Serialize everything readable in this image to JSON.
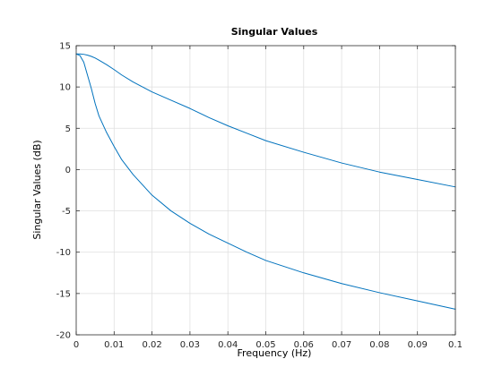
{
  "chart_data": {
    "type": "line",
    "title": "Singular Values",
    "xlabel": "Frequency (Hz)",
    "ylabel": "Singular Values (dB)",
    "xlim": [
      0,
      0.1
    ],
    "ylim": [
      -20,
      15
    ],
    "xticks": [
      0,
      0.01,
      0.02,
      0.03,
      0.04,
      0.05,
      0.06,
      0.07,
      0.08,
      0.09,
      0.1
    ],
    "xtick_labels": [
      "0",
      "0.01",
      "0.02",
      "0.03",
      "0.04",
      "0.05",
      "0.06",
      "0.07",
      "0.08",
      "0.09",
      "0.1"
    ],
    "yticks": [
      -20,
      -15,
      -10,
      -5,
      0,
      5,
      10,
      15
    ],
    "ytick_labels": [
      "-20",
      "-15",
      "-10",
      "-5",
      "0",
      "5",
      "10",
      "15"
    ],
    "grid": true,
    "line_color": "#0072BD",
    "series": [
      {
        "x": [
          0,
          0.001,
          0.002,
          0.003,
          0.004,
          0.005,
          0.006,
          0.008,
          0.01,
          0.012,
          0.015,
          0.02,
          0.025,
          0.03,
          0.035,
          0.04,
          0.045,
          0.05,
          0.06,
          0.07,
          0.08,
          0.09,
          0.1
        ],
        "y": [
          14,
          14,
          13.95,
          13.85,
          13.7,
          13.5,
          13.25,
          12.7,
          12.1,
          11.45,
          10.6,
          9.4,
          8.4,
          7.4,
          6.3,
          5.3,
          4.4,
          3.5,
          2.1,
          0.8,
          -0.3,
          -1.2,
          -2.1
        ]
      },
      {
        "x": [
          0,
          0.001,
          0.002,
          0.003,
          0.004,
          0.005,
          0.006,
          0.008,
          0.01,
          0.012,
          0.015,
          0.02,
          0.025,
          0.03,
          0.035,
          0.04,
          0.045,
          0.05,
          0.06,
          0.07,
          0.08,
          0.09,
          0.1
        ],
        "y": [
          14,
          13.8,
          13,
          11.4,
          9.8,
          8,
          6.5,
          4.5,
          2.8,
          1.2,
          -0.6,
          -3.1,
          -5,
          -6.5,
          -7.8,
          -8.9,
          -10,
          -11,
          -12.5,
          -13.8,
          -14.9,
          -15.9,
          -16.9
        ]
      }
    ]
  }
}
